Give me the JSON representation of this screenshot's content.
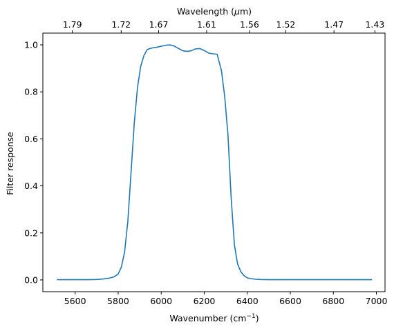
{
  "chart_data": {
    "type": "line",
    "title": "",
    "xlabel": "Wavenumber (cm",
    "xlabel_superscript": "−1",
    "xlabel_suffix": ")",
    "ylabel": "Filter response",
    "top_xlabel": "Wavelength (",
    "top_xlabel_mu": "μ",
    "top_xlabel_suffix": "m)",
    "xlim": [
      5450,
      7040
    ],
    "ylim": [
      -0.05,
      1.05
    ],
    "grid": false,
    "x_ticks": [
      5600,
      5800,
      6000,
      6200,
      6400,
      6600,
      6800,
      7000
    ],
    "y_ticks": [
      0.0,
      0.2,
      0.4,
      0.6,
      0.8,
      1.0
    ],
    "y_tick_labels": [
      "0.0",
      "0.2",
      "0.4",
      "0.6",
      "0.8",
      "1.0"
    ],
    "top_ticks": [
      {
        "label": "1.79",
        "wavenumber": 5587
      },
      {
        "label": "1.72",
        "wavenumber": 5814
      },
      {
        "label": "1.67",
        "wavenumber": 5988
      },
      {
        "label": "1.61",
        "wavenumber": 6211
      },
      {
        "label": "1.56",
        "wavenumber": 6410
      },
      {
        "label": "1.52",
        "wavenumber": 6579
      },
      {
        "label": "1.47",
        "wavenumber": 6803
      },
      {
        "label": "1.43",
        "wavenumber": 6993
      }
    ],
    "series": [
      {
        "color": "#1f77b4",
        "x": [
          5515,
          5600,
          5650,
          5700,
          5730,
          5760,
          5780,
          5800,
          5815,
          5830,
          5845,
          5860,
          5875,
          5890,
          5905,
          5920,
          5935,
          5950,
          5965,
          5980,
          6000,
          6020,
          6040,
          6060,
          6080,
          6100,
          6120,
          6140,
          6160,
          6180,
          6200,
          6220,
          6240,
          6260,
          6280,
          6295,
          6310,
          6325,
          6340,
          6355,
          6370,
          6385,
          6400,
          6420,
          6440,
          6460,
          6500,
          6550,
          6600,
          6700,
          6800,
          6900,
          6980
        ],
        "y": [
          0.001,
          0.001,
          0.001,
          0.002,
          0.004,
          0.008,
          0.013,
          0.025,
          0.055,
          0.12,
          0.25,
          0.46,
          0.67,
          0.82,
          0.91,
          0.955,
          0.98,
          0.985,
          0.988,
          0.99,
          0.994,
          0.998,
          1.0,
          0.995,
          0.985,
          0.975,
          0.972,
          0.975,
          0.983,
          0.984,
          0.976,
          0.965,
          0.962,
          0.96,
          0.89,
          0.78,
          0.62,
          0.35,
          0.15,
          0.068,
          0.035,
          0.018,
          0.009,
          0.005,
          0.003,
          0.002,
          0.001,
          0.001,
          0.001,
          0.001,
          0.001,
          0.001,
          0.001
        ]
      }
    ]
  }
}
